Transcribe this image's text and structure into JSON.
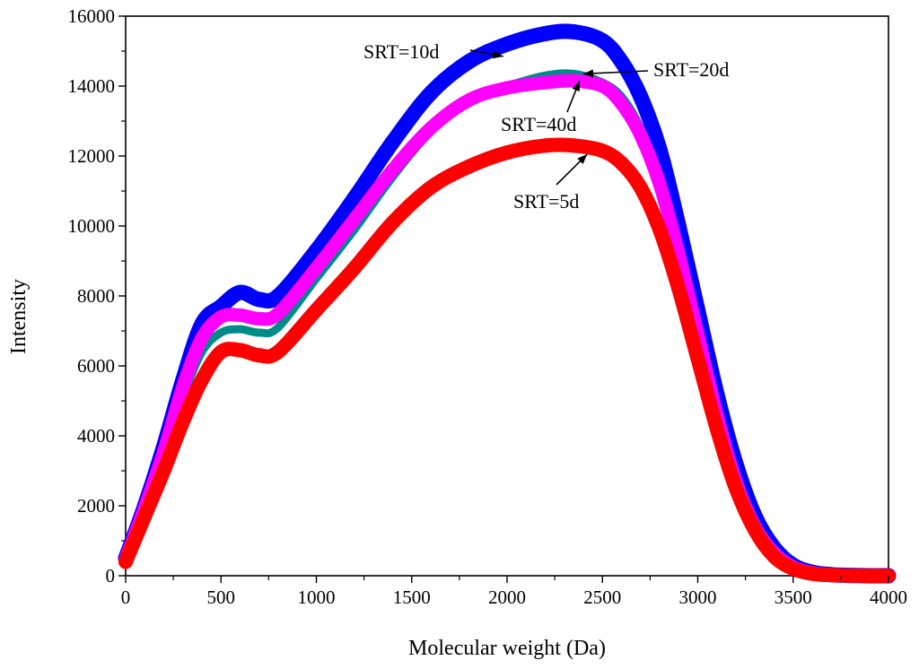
{
  "chart_data": {
    "type": "line",
    "title": "",
    "xlabel": "Molecular weight (Da)",
    "ylabel": "Intensity",
    "xlim": [
      0,
      4000
    ],
    "ylim": [
      0,
      16000
    ],
    "x_ticks": [
      0,
      500,
      1000,
      1500,
      2000,
      2500,
      3000,
      3500,
      4000
    ],
    "y_ticks": [
      0,
      2000,
      4000,
      6000,
      8000,
      10000,
      12000,
      14000,
      16000
    ],
    "x_tick_labels": [
      "0",
      "500",
      "1000",
      "1500",
      "2000",
      "2500",
      "3000",
      "3500",
      "4000"
    ],
    "y_tick_labels": [
      "0",
      "2000",
      "4000",
      "6000",
      "8000",
      "10000",
      "12000",
      "14000",
      "16000"
    ],
    "x": [
      0,
      100,
      200,
      300,
      400,
      500,
      600,
      700,
      800,
      1000,
      1200,
      1400,
      1600,
      1800,
      2000,
      2200,
      2350,
      2500,
      2600,
      2700,
      2800,
      2900,
      3000,
      3100,
      3200,
      3300,
      3400,
      3500,
      3600,
      3700,
      3800,
      3900,
      4000
    ],
    "series": [
      {
        "name": "SRT=10d",
        "color": "#0000ff",
        "values": [
          500,
          2000,
          3700,
          5600,
          7200,
          7700,
          8100,
          7900,
          8000,
          9300,
          10800,
          12400,
          13800,
          14700,
          15200,
          15500,
          15550,
          15300,
          14700,
          13700,
          12200,
          10000,
          7600,
          5200,
          3200,
          1700,
          800,
          300,
          100,
          30,
          10,
          0,
          0
        ]
      },
      {
        "name": "SRT=20d",
        "color": "#008b8b",
        "values": [
          450,
          1850,
          3400,
          5100,
          6400,
          6950,
          7050,
          6950,
          7100,
          8500,
          9900,
          11400,
          12700,
          13600,
          14000,
          14300,
          14350,
          14100,
          13700,
          12800,
          11400,
          9300,
          7000,
          4700,
          2800,
          1400,
          600,
          200,
          60,
          20,
          5,
          0,
          0
        ]
      },
      {
        "name": "SRT=40d",
        "color": "#ff00ff",
        "values": [
          480,
          1950,
          3550,
          5400,
          6800,
          7400,
          7450,
          7350,
          7500,
          8800,
          10200,
          11600,
          12800,
          13600,
          13950,
          14100,
          14150,
          14000,
          13500,
          12600,
          11200,
          9200,
          6900,
          4600,
          2700,
          1400,
          650,
          250,
          90,
          30,
          10,
          0,
          0
        ]
      },
      {
        "name": "SRT=5d",
        "color": "#ff0000",
        "values": [
          400,
          1700,
          3000,
          4400,
          5600,
          6400,
          6450,
          6300,
          6400,
          7600,
          8800,
          10100,
          11100,
          11700,
          12100,
          12300,
          12300,
          12150,
          11800,
          11100,
          9900,
          8200,
          6200,
          4200,
          2500,
          1300,
          550,
          200,
          60,
          20,
          5,
          0,
          0
        ]
      }
    ],
    "annotations": [
      {
        "text": "SRT=10d",
        "series": "SRT=10d",
        "arrow_to": [
          1980,
          14850
        ]
      },
      {
        "text": "SRT=20d",
        "series": "SRT=20d",
        "arrow_to": [
          2400,
          14350
        ]
      },
      {
        "text": "SRT=40d",
        "series": "SRT=40d",
        "arrow_to": [
          2380,
          14150
        ]
      },
      {
        "text": "SRT=5d",
        "series": "SRT=5d",
        "arrow_to": [
          2420,
          12050
        ]
      }
    ]
  }
}
